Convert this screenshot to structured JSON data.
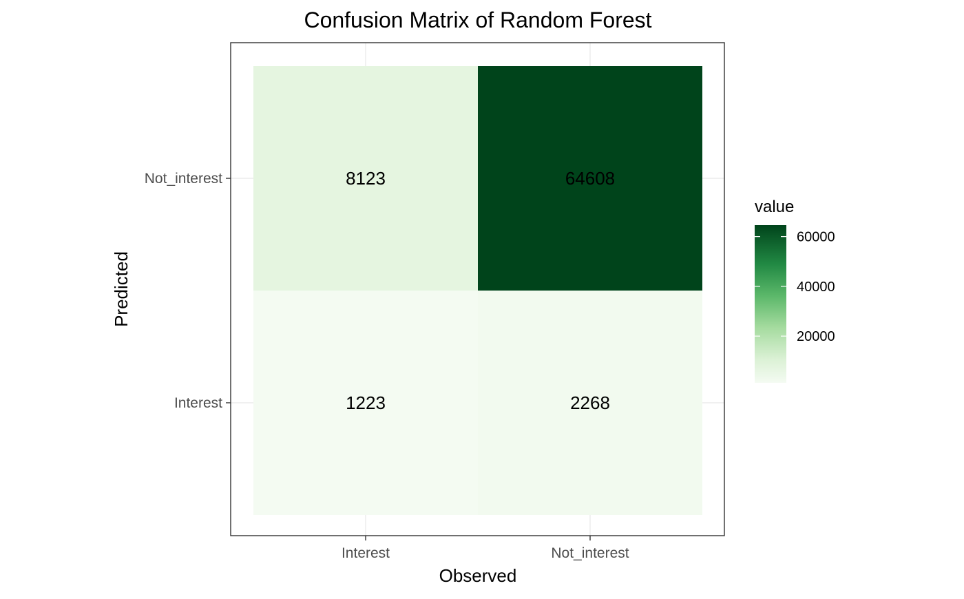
{
  "chart_data": {
    "type": "heatmap",
    "title": "Confusion Matrix of Random Forest",
    "xlabel": "Observed",
    "ylabel": "Predicted",
    "x_categories": [
      "Interest",
      "Not_interest"
    ],
    "y_categories": [
      "Interest",
      "Not_interest"
    ],
    "cells": [
      {
        "observed": "Interest",
        "predicted": "Not_interest",
        "value": 8123,
        "label": "8123"
      },
      {
        "observed": "Not_interest",
        "predicted": "Not_interest",
        "value": 64608,
        "label": "64608"
      },
      {
        "observed": "Interest",
        "predicted": "Interest",
        "value": 1223,
        "label": "1223"
      },
      {
        "observed": "Not_interest",
        "predicted": "Interest",
        "value": 2268,
        "label": "2268"
      }
    ],
    "legend": {
      "title": "value",
      "ticks": [
        20000,
        40000,
        60000
      ],
      "tick_labels": [
        "20000",
        "40000",
        "60000"
      ],
      "range": [
        1223,
        64608
      ],
      "color_low": "#f7fcf5",
      "color_high": "#00441b",
      "placement": "right"
    },
    "grid": true,
    "theme": "bw"
  }
}
